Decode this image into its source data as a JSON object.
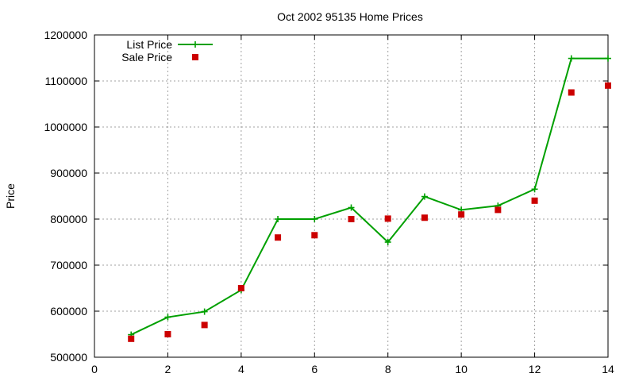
{
  "chart_data": {
    "type": "line",
    "title": "Oct 2002 95135 Home Prices",
    "xlabel": "",
    "ylabel": "Price",
    "xlim": [
      0,
      14
    ],
    "ylim": [
      500000,
      1200000
    ],
    "xticks": [
      0,
      2,
      4,
      6,
      8,
      10,
      12,
      14
    ],
    "yticks": [
      500000,
      600000,
      700000,
      800000,
      900000,
      1000000,
      1100000,
      1200000
    ],
    "grid": true,
    "legend_position": "top-left",
    "series": [
      {
        "name": "List Price",
        "style": "line-with-plus-markers",
        "color": "#00a000",
        "x": [
          1,
          2,
          3,
          4,
          5,
          6,
          7,
          8,
          9,
          10,
          11,
          12,
          13,
          14
        ],
        "y": [
          549000,
          587000,
          599000,
          646000,
          800000,
          800000,
          825000,
          750000,
          849000,
          820000,
          829000,
          865000,
          1149000,
          1149000
        ]
      },
      {
        "name": "Sale Price",
        "style": "square-markers",
        "color": "#cc0000",
        "x": [
          1,
          2,
          3,
          4,
          5,
          6,
          7,
          8,
          9,
          10,
          11,
          12,
          13,
          14
        ],
        "y": [
          540000,
          550000,
          570000,
          650000,
          760000,
          765000,
          800000,
          801000,
          803000,
          810000,
          820000,
          840000,
          1075000,
          1090000
        ]
      }
    ]
  }
}
